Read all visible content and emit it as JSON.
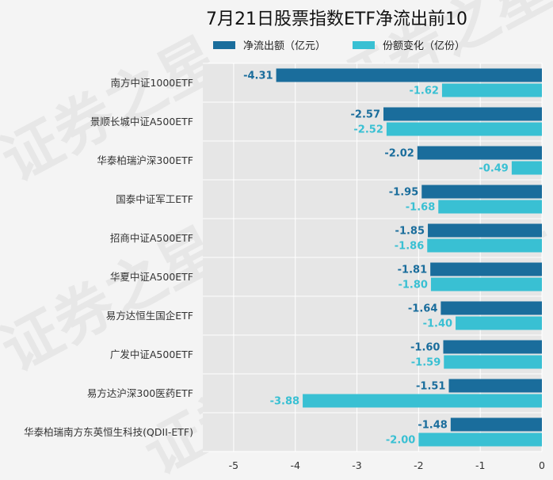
{
  "chart_data": {
    "type": "bar",
    "orientation": "horizontal",
    "title": "7月21日股票指数ETF净流出前10",
    "watermark": "证券之星",
    "categories": [
      "南方中证1000ETF",
      "景顺长城中证A500ETF",
      "华泰柏瑞沪深300ETF",
      "国泰中证军工ETF",
      "招商中证A500ETF",
      "华夏中证A500ETF",
      "易方达恒生国企ETF",
      "广发中证A500ETF",
      "易方达沪深300医药ETF",
      "华泰柏瑞南方东英恒生科技(QDII-ETF)"
    ],
    "series": [
      {
        "name": "净流出额（亿元）",
        "color": "#1a6d9c",
        "values": [
          -4.31,
          -2.57,
          -2.02,
          -1.95,
          -1.85,
          -1.81,
          -1.64,
          -1.6,
          -1.51,
          -1.48
        ],
        "labels": [
          "-4.31",
          "-2.57",
          "-2.02",
          "-1.95",
          "-1.85",
          "-1.81",
          "-1.64",
          "-1.60",
          "-1.51",
          "-1.48"
        ]
      },
      {
        "name": "份额变化（亿份）",
        "color": "#39c0d3",
        "values": [
          -1.62,
          -2.52,
          -0.49,
          -1.68,
          -1.86,
          -1.8,
          -1.4,
          -1.59,
          -3.88,
          -2.0
        ],
        "labels": [
          "-1.62",
          "-2.52",
          "-0.49",
          "-1.68",
          "-1.86",
          "-1.80",
          "-1.40",
          "-1.59",
          "-3.88",
          "-2.00"
        ]
      }
    ],
    "xlim": [
      -5.5,
      0
    ],
    "xticks": [
      -5,
      -4,
      -3,
      -2,
      -1,
      0
    ],
    "xtick_labels": [
      "-5",
      "-4",
      "-3",
      "-2",
      "-1",
      "0"
    ],
    "grid": true,
    "legend": "top-center"
  }
}
